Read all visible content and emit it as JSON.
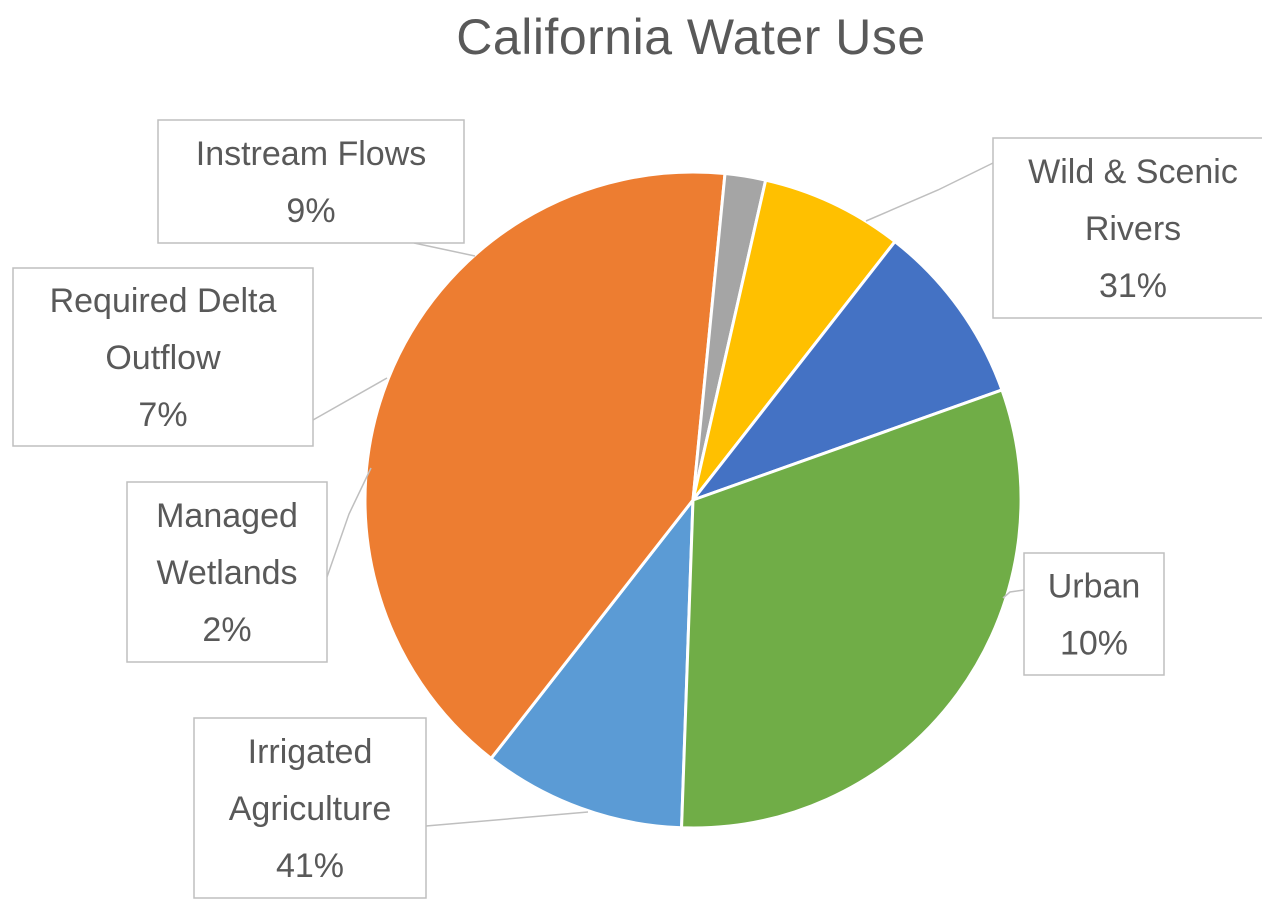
{
  "chart_data": {
    "type": "pie",
    "title": "California Water Use",
    "series": [
      {
        "name": "Urban",
        "label_lines": [
          "Urban",
          "10%"
        ],
        "value": 10,
        "color": "#5B9BD5"
      },
      {
        "name": "Irrigated Agriculture",
        "label_lines": [
          "Irrigated",
          "Agriculture",
          "41%"
        ],
        "value": 41,
        "color": "#ED7D31"
      },
      {
        "name": "Managed Wetlands",
        "label_lines": [
          "Managed",
          "Wetlands",
          "2%"
        ],
        "value": 2,
        "color": "#A5A5A5"
      },
      {
        "name": "Required Delta Outflow",
        "label_lines": [
          "Required Delta",
          "Outflow",
          "7%"
        ],
        "value": 7,
        "color": "#FFC000"
      },
      {
        "name": "Instream Flows",
        "label_lines": [
          "Instream Flows",
          "9%"
        ],
        "value": 9,
        "color": "#4472C4"
      },
      {
        "name": "Wild & Scenic Rivers",
        "label_lines": [
          "Wild & Scenic",
          "Rivers",
          "31%"
        ],
        "value": 31,
        "color": "#70AD47"
      }
    ],
    "legend": "none",
    "data_labels": "callouts"
  }
}
